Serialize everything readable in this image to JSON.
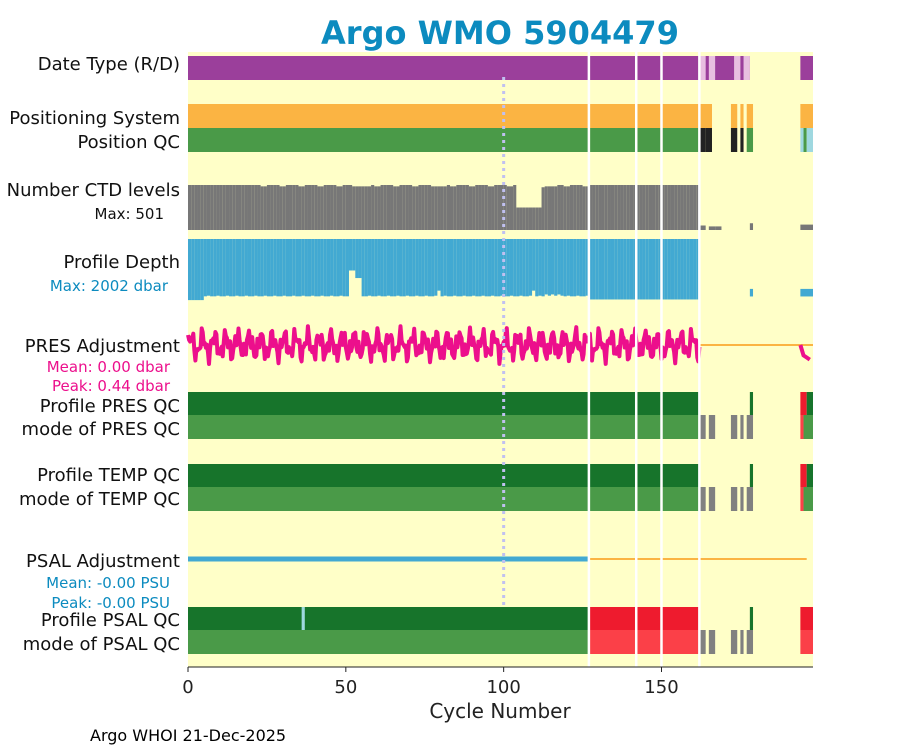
{
  "chart_data": {
    "type": "timeline",
    "title": "Argo WMO 5904479",
    "xlabel": "Cycle Number",
    "xlim": [
      0,
      198
    ],
    "xticks": [
      0,
      50,
      100,
      150
    ],
    "reference_cycle": 100,
    "footer": "Argo WHOI 21-Dec-2025",
    "colors": {
      "background": "#ffffc8",
      "title": "#0c8bbf",
      "date_type": "#9b3f9b",
      "date_type_light": "#e8bfe0",
      "positioning": "#fbb443",
      "qc_good": "#4a9a48",
      "qc_dark_good": "#17742b",
      "qc_gray": "#808080",
      "qc_black": "#222222",
      "qc_cyan": "#9fd8e0",
      "qc_red": "#ee1b2e",
      "qc_red_light": "#fb4048",
      "ctd_levels": "#777777",
      "profile_depth": "#42a9d2",
      "pres_adjustment": "#ec0f8c",
      "psal_adjustment": "#42a9d2",
      "line_orange": "#fbb443",
      "separator": "#ffffff",
      "ref_line": "#c0c0f0"
    },
    "rows": [
      {
        "label": "Date Type (R/D)"
      },
      {
        "label": "Positioning System"
      },
      {
        "label": "Position QC"
      },
      {
        "label": "Number CTD levels",
        "sublabel": "Max: 501"
      },
      {
        "label": "Profile Depth",
        "sublabel": "Max: 2002 dbar"
      },
      {
        "label": "PRES Adjustment",
        "sublabel1": "Mean: 0.00 dbar",
        "sublabel2": "Peak: 0.44 dbar"
      },
      {
        "label": "Profile PRES QC"
      },
      {
        "label": "mode of PRES QC"
      },
      {
        "label": "Profile TEMP QC"
      },
      {
        "label": "mode of TEMP QC"
      },
      {
        "label": "PSAL Adjustment",
        "sublabel1": "Mean: -0.00 PSU",
        "sublabel2": "Peak: -0.00 PSU"
      },
      {
        "label": "Profile PSAL QC"
      },
      {
        "label": "mode of PSAL QC"
      }
    ],
    "separators": [
      127,
      142,
      150,
      162
    ],
    "date_type": [
      [
        0,
        198,
        "date_type"
      ],
      [
        162,
        164,
        "date_type_light"
      ],
      [
        165,
        167,
        "date_type_light"
      ],
      [
        173,
        175,
        "date_type_light"
      ],
      [
        176,
        178,
        "date_type_light"
      ],
      [
        178,
        194,
        "background"
      ]
    ],
    "positioning": [
      [
        0,
        166,
        "positioning"
      ],
      [
        172,
        174,
        "positioning"
      ],
      [
        175,
        176,
        "positioning"
      ],
      [
        177,
        179,
        "positioning"
      ],
      [
        194,
        198,
        "positioning"
      ]
    ],
    "position_qc": [
      [
        0,
        162,
        "qc_good"
      ],
      [
        162,
        164,
        "qc_black"
      ],
      [
        164,
        166,
        "qc_black"
      ],
      [
        172,
        174,
        "qc_black"
      ],
      [
        175,
        176,
        "qc_black"
      ],
      [
        177,
        179,
        "qc_good"
      ],
      [
        194,
        195,
        "qc_cyan"
      ],
      [
        195,
        196,
        "qc_good"
      ],
      [
        196,
        198,
        "qc_cyan"
      ]
    ],
    "ctd_levels": {
      "max": 501,
      "dips": [
        [
          52,
          58,
          0.97
        ],
        [
          78,
          82,
          0.97
        ],
        [
          104,
          112,
          0.5
        ],
        [
          112,
          113,
          0.95
        ],
        [
          113,
          117,
          0.97
        ]
      ],
      "end": 162,
      "stubs": [
        [
          162,
          164,
          0.1
        ],
        [
          165,
          167,
          0.08
        ],
        [
          167,
          169,
          0.08
        ],
        [
          178,
          179,
          0.15
        ],
        [
          194,
          198,
          0.12
        ]
      ]
    },
    "profile_depth": {
      "max": 2002,
      "end": 162,
      "stubs": [
        [
          178,
          179,
          0.12
        ],
        [
          194,
          198,
          0.12
        ]
      ]
    },
    "pres_adjustment": {
      "ylim": [
        -0.6,
        0.6
      ],
      "end": 162,
      "tail": [
        [
          194,
          195,
          0.0
        ],
        [
          195,
          196,
          -0.25
        ],
        [
          196,
          197,
          -0.3
        ],
        [
          197,
          198,
          -0.35
        ]
      ]
    },
    "pres_qc": [
      [
        0,
        162,
        "qc_dark_good"
      ],
      [
        178,
        179,
        "qc_dark_good"
      ],
      [
        194,
        196,
        "qc_red"
      ],
      [
        196,
        198,
        "qc_dark_good"
      ]
    ],
    "pres_mode": [
      [
        0,
        162,
        "qc_good"
      ],
      [
        162,
        164,
        "qc_gray"
      ],
      [
        165,
        167,
        "qc_gray"
      ],
      [
        172,
        174,
        "qc_gray"
      ],
      [
        175,
        176,
        "qc_gray"
      ],
      [
        177,
        179,
        "qc_gray"
      ],
      [
        194,
        195,
        "qc_red_light"
      ],
      [
        195,
        198,
        "qc_good"
      ]
    ],
    "temp_qc": [
      [
        0,
        162,
        "qc_dark_good"
      ],
      [
        178,
        179,
        "qc_dark_good"
      ],
      [
        194,
        196,
        "qc_red"
      ],
      [
        196,
        198,
        "qc_dark_good"
      ]
    ],
    "temp_mode": [
      [
        0,
        162,
        "qc_good"
      ],
      [
        162,
        164,
        "qc_gray"
      ],
      [
        165,
        167,
        "qc_gray"
      ],
      [
        172,
        174,
        "qc_gray"
      ],
      [
        175,
        176,
        "qc_gray"
      ],
      [
        177,
        179,
        "qc_gray"
      ],
      [
        194,
        195,
        "qc_red_light"
      ],
      [
        195,
        198,
        "qc_good"
      ]
    ],
    "psal_adjustment": {
      "value": 0,
      "end": 127
    },
    "psal_qc": [
      [
        0,
        127,
        "qc_dark_good"
      ],
      [
        36,
        37,
        "qc_cyan"
      ],
      [
        127,
        162,
        "qc_red"
      ],
      [
        178,
        179,
        "qc_dark_good"
      ],
      [
        194,
        198,
        "qc_red"
      ]
    ],
    "psal_mode": [
      [
        0,
        127,
        "qc_good"
      ],
      [
        127,
        162,
        "qc_red_light"
      ],
      [
        162,
        164,
        "qc_gray"
      ],
      [
        165,
        167,
        "qc_gray"
      ],
      [
        172,
        174,
        "qc_gray"
      ],
      [
        175,
        176,
        "qc_gray"
      ],
      [
        177,
        179,
        "qc_gray"
      ],
      [
        194,
        198,
        "qc_red_light"
      ]
    ]
  }
}
